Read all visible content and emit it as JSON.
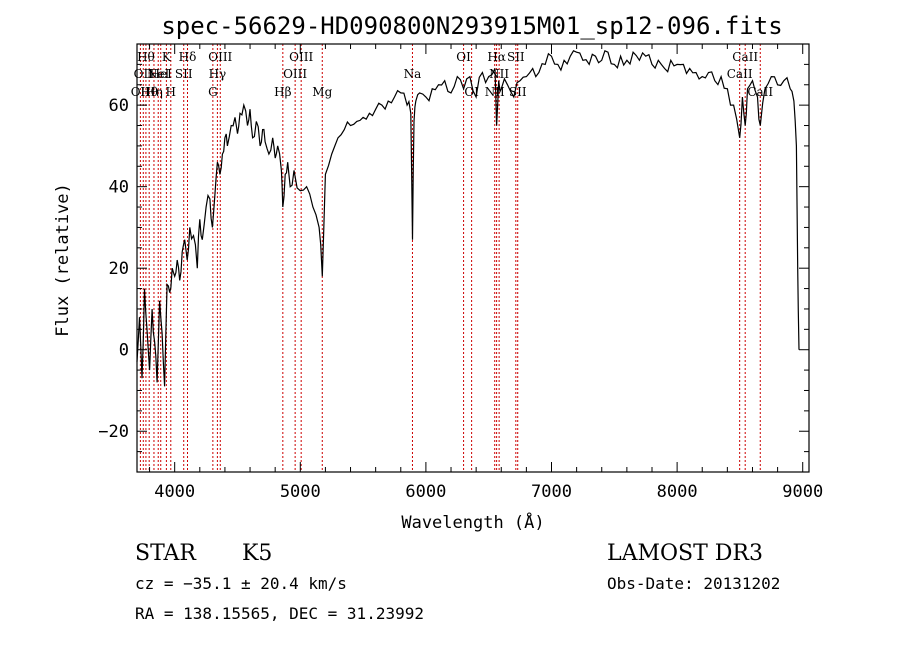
{
  "chart_data": {
    "type": "line",
    "title": "spec-56629-HD090800N293915M01_sp12-096.fits",
    "xlabel": "Wavelength (Å)",
    "ylabel": "Flux (relative)",
    "xlim": [
      3700,
      9050
    ],
    "ylim": [
      -30,
      75
    ],
    "x_ticks": [
      4000,
      5000,
      6000,
      7000,
      8000,
      9000
    ],
    "y_ticks": [
      -20,
      0,
      20,
      40,
      60
    ],
    "grid": false,
    "series": [
      {
        "x": [
          3700,
          3720,
          3740,
          3760,
          3780,
          3800,
          3820,
          3840,
          3860,
          3880,
          3900,
          3920,
          3940,
          3960,
          3980,
          4000,
          4020,
          4040,
          4060,
          4080,
          4100,
          4120,
          4150,
          4180,
          4200,
          4220,
          4250,
          4280,
          4300,
          4320,
          4340,
          4360,
          4380,
          4400,
          4420,
          4450,
          4480,
          4500,
          4520,
          4550,
          4580,
          4600,
          4620,
          4650,
          4680,
          4700,
          4720,
          4750,
          4780,
          4800,
          4820,
          4850,
          4861,
          4880,
          4900,
          4920,
          4950,
          5000,
          5050,
          5100,
          5150,
          5175,
          5200,
          5250,
          5300,
          5350,
          5400,
          5450,
          5500,
          5550,
          5600,
          5650,
          5700,
          5750,
          5800,
          5850,
          5880,
          5893,
          5905,
          5920,
          5950,
          6000,
          6050,
          6100,
          6150,
          6200,
          6250,
          6300,
          6350,
          6400,
          6450,
          6500,
          6550,
          6563,
          6580,
          6600,
          6650,
          6700,
          6750,
          6800,
          6850,
          6900,
          6950,
          7000,
          7050,
          7100,
          7150,
          7200,
          7250,
          7300,
          7350,
          7400,
          7450,
          7500,
          7550,
          7600,
          7650,
          7700,
          7750,
          7800,
          7850,
          7900,
          7950,
          8000,
          8050,
          8100,
          8150,
          8200,
          8250,
          8300,
          8350,
          8400,
          8450,
          8498,
          8520,
          8542,
          8560,
          8600,
          8640,
          8662,
          8700,
          8750,
          8800,
          8850,
          8900,
          8930,
          8950,
          8960,
          8970
        ],
        "y": [
          -3,
          8,
          -7,
          15,
          5,
          -5,
          10,
          2,
          -8,
          12,
          4,
          -9,
          16,
          14,
          20,
          18,
          22,
          17,
          24,
          27,
          22,
          30,
          28,
          20,
          32,
          27,
          35,
          37,
          30,
          38,
          46,
          43,
          48,
          52,
          50,
          55,
          57,
          53,
          58,
          60,
          55,
          59,
          52,
          56,
          50,
          54,
          51,
          48,
          52,
          47,
          50,
          44,
          35,
          43,
          46,
          40,
          44,
          39,
          40,
          35,
          30,
          18,
          43,
          48,
          52,
          54,
          55,
          56,
          57,
          58,
          59,
          60,
          61,
          62,
          63,
          60,
          58,
          27,
          56,
          61,
          63,
          62,
          64,
          65,
          66,
          63,
          67,
          64,
          67,
          62,
          68,
          67,
          69,
          55,
          66,
          64,
          65,
          62,
          66,
          67,
          69,
          68,
          70,
          72,
          70,
          71,
          72,
          73,
          71,
          70,
          72,
          71,
          73,
          70,
          72,
          71,
          73,
          71,
          72,
          70,
          71,
          69,
          71,
          70,
          70,
          69,
          68,
          67,
          68,
          66,
          67,
          64,
          60,
          52,
          62,
          55,
          64,
          66,
          62,
          55,
          64,
          67,
          65,
          66,
          64,
          61,
          50,
          20,
          0
        ]
      }
    ],
    "line_marks": [
      {
        "wave": 3727,
        "label": "OII",
        "row": 2
      },
      {
        "wave": 3750,
        "label": "OII",
        "row": 1
      },
      {
        "wave": 3771,
        "label": "Hθ",
        "row": 0
      },
      {
        "wave": 3797,
        "label": "Hθ",
        "row": 2
      },
      {
        "wave": 3835,
        "label": "Hη",
        "row": 2
      },
      {
        "wave": 3869,
        "label": "NeI",
        "row": 1
      },
      {
        "wave": 3889,
        "label": "HeI",
        "row": 1
      },
      {
        "wave": 3934,
        "label": "K",
        "row": 0
      },
      {
        "wave": 3969,
        "label": "H",
        "row": 2
      },
      {
        "wave": 4072,
        "label": "SII",
        "row": 1
      },
      {
        "wave": 4102,
        "label": "Hδ",
        "row": 0
      },
      {
        "wave": 4304,
        "label": "G",
        "row": 2
      },
      {
        "wave": 4340,
        "label": "Hγ",
        "row": 1
      },
      {
        "wave": 4363,
        "label": "OIII",
        "row": 0
      },
      {
        "wave": 4861,
        "label": "Hβ",
        "row": 2
      },
      {
        "wave": 4959,
        "label": "OIII",
        "row": 1
      },
      {
        "wave": 5007,
        "label": "OIII",
        "row": 0
      },
      {
        "wave": 5175,
        "label": "Mg",
        "row": 2
      },
      {
        "wave": 5893,
        "label": "Na",
        "row": 1
      },
      {
        "wave": 6300,
        "label": "OI",
        "row": 0
      },
      {
        "wave": 6364,
        "label": "OI",
        "row": 2
      },
      {
        "wave": 6548,
        "label": "NII",
        "row": 2
      },
      {
        "wave": 6563,
        "label": "Hα",
        "row": 0
      },
      {
        "wave": 6583,
        "label": "NII",
        "row": 1
      },
      {
        "wave": 6716,
        "label": "SII",
        "row": 0
      },
      {
        "wave": 6731,
        "label": "SII",
        "row": 2
      },
      {
        "wave": 8498,
        "label": "CaII",
        "row": 1
      },
      {
        "wave": 8542,
        "label": "CaII",
        "row": 0
      },
      {
        "wave": 8662,
        "label": "CaII",
        "row": 2
      }
    ]
  },
  "info": {
    "class": "STAR",
    "subclass": "K5",
    "survey": "LAMOST DR3",
    "cz": "cz = −35.1 ± 20.4 km/s",
    "obs_date": "Obs-Date: 20131202",
    "radec": "RA = 138.15565, DEC =  31.23992"
  },
  "colors": {
    "spectrum": "#000000",
    "line_marks": "#cc0000",
    "axes": "#000000"
  }
}
